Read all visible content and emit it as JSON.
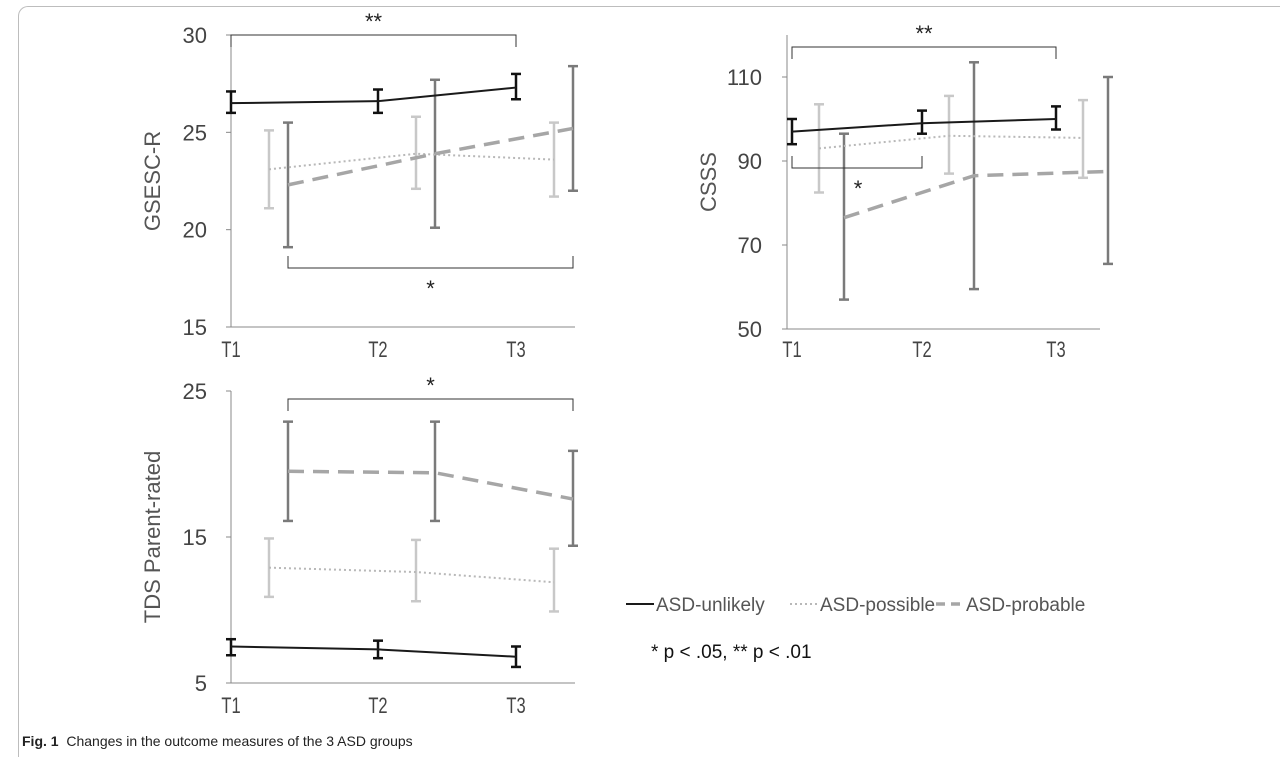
{
  "caption": {
    "label": "Fig. 1",
    "text": "Changes in the outcome measures of the 3 ASD groups"
  },
  "legend": {
    "items": [
      {
        "name": "ASD-unlikely",
        "color": "#1a1a1a",
        "dash": "solid"
      },
      {
        "name": "ASD-possible",
        "color": "#b5b5b5",
        "dash": "dotted"
      },
      {
        "name": "ASD-probable",
        "color": "#a3a3a3",
        "dash": "dashed"
      }
    ],
    "note": "* p < .05, ** p < .01"
  },
  "chart_data": [
    {
      "type": "line",
      "ylabel": "GSESC-R",
      "categories": [
        "T1",
        "T2",
        "T3"
      ],
      "ylim": [
        15,
        30
      ],
      "yticks": [
        15,
        20,
        25,
        30
      ],
      "series": [
        {
          "name": "ASD-unlikely",
          "values": [
            26.5,
            26.6,
            27.3
          ],
          "err_low": [
            26.0,
            26.0,
            26.7
          ],
          "err_high": [
            27.1,
            27.2,
            28.0
          ]
        },
        {
          "name": "ASD-possible",
          "values": [
            23.1,
            23.9,
            23.6
          ],
          "err_low": [
            21.1,
            22.1,
            21.7
          ],
          "err_high": [
            25.1,
            25.8,
            25.5
          ]
        },
        {
          "name": "ASD-probable",
          "values": [
            22.3,
            23.9,
            25.2
          ],
          "err_low": [
            19.1,
            20.1,
            22.0
          ],
          "err_high": [
            25.5,
            27.7,
            28.4
          ]
        }
      ],
      "brackets": [
        {
          "series": "ASD-unlikely",
          "from": "T1",
          "to": "T3",
          "label": "**",
          "position": "above"
        },
        {
          "series": "ASD-probable",
          "from": "T1",
          "to": "T3",
          "label": "*",
          "position": "below"
        }
      ]
    },
    {
      "type": "line",
      "ylabel": "CSSS",
      "categories": [
        "T1",
        "T2",
        "T3"
      ],
      "ylim": [
        50,
        120
      ],
      "yticks": [
        50,
        70,
        90,
        110
      ],
      "series": [
        {
          "name": "ASD-unlikely",
          "values": [
            97,
            99,
            100
          ],
          "err_low": [
            94,
            96.5,
            97.5
          ],
          "err_high": [
            100,
            102,
            103
          ]
        },
        {
          "name": "ASD-possible",
          "values": [
            93,
            96,
            95.5
          ],
          "err_low": [
            82.5,
            87,
            86
          ],
          "err_high": [
            103.5,
            105.5,
            104.5
          ]
        },
        {
          "name": "ASD-probable",
          "values": [
            76.5,
            86.5,
            87.5
          ],
          "err_low": [
            57,
            59.5,
            65.5
          ],
          "err_high": [
            96.5,
            113.5,
            110
          ]
        }
      ],
      "brackets": [
        {
          "series": "ASD-unlikely",
          "from": "T1",
          "to": "T3",
          "label": "**",
          "position": "above"
        },
        {
          "series": "ASD-unlikely",
          "from": "T1",
          "to": "T2",
          "label": "*",
          "position": "below"
        }
      ]
    },
    {
      "type": "line",
      "ylabel": "TDS Parent-rated",
      "categories": [
        "T1",
        "T2",
        "T3"
      ],
      "ylim": [
        5,
        25
      ],
      "yticks": [
        5,
        15,
        25
      ],
      "series": [
        {
          "name": "ASD-unlikely",
          "values": [
            7.5,
            7.3,
            6.8
          ],
          "err_low": [
            6.9,
            6.7,
            6.1
          ],
          "err_high": [
            8.0,
            7.9,
            7.5
          ]
        },
        {
          "name": "ASD-possible",
          "values": [
            12.9,
            12.6,
            11.9
          ],
          "err_low": [
            10.9,
            10.6,
            9.9
          ],
          "err_high": [
            14.9,
            14.8,
            14.2
          ]
        },
        {
          "name": "ASD-probable",
          "values": [
            19.5,
            19.4,
            17.6
          ],
          "err_low": [
            16.1,
            16.1,
            14.4
          ],
          "err_high": [
            22.9,
            22.9,
            20.9
          ]
        }
      ],
      "brackets": [
        {
          "series": "ASD-probable",
          "from": "T1",
          "to": "T3",
          "label": "*",
          "position": "above"
        }
      ]
    }
  ]
}
